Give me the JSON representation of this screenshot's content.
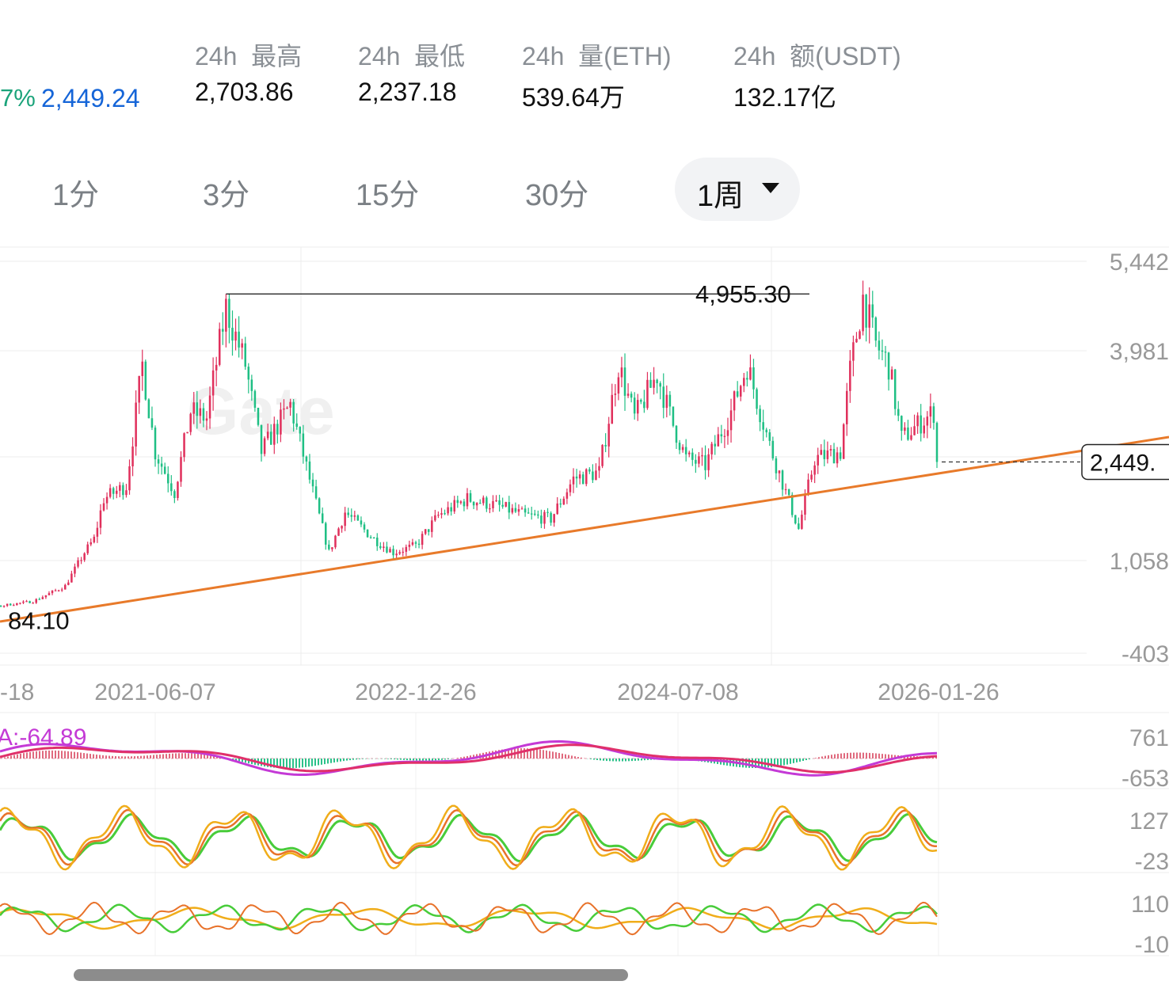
{
  "header": {
    "change_fragment": "7%",
    "last_price": "2,449.24",
    "stats": [
      {
        "label": "24h  最高",
        "value": "2,703.86"
      },
      {
        "label": "24h  最低",
        "value": "2,237.18"
      },
      {
        "label": "24h  量(ETH)",
        "value": "539.64万"
      },
      {
        "label": "24h  额(USDT)",
        "value": "132.17亿"
      }
    ]
  },
  "intervals": {
    "tabs": [
      "1分",
      "3分",
      "15分",
      "30分"
    ],
    "active": "1周"
  },
  "chart_data": [
    {
      "type": "candlestick",
      "y_axis_labels": [
        "5,442",
        "3,981",
        "1,058",
        "-403"
      ],
      "x_axis_labels": [
        "-18",
        "2021-06-07",
        "2022-12-26",
        "2024-07-08",
        "2026-01-26"
      ],
      "ylim": [
        -403,
        5442
      ],
      "high_marker": "4,955.30",
      "low_marker": "84.10",
      "last_price_tag": "2,449.",
      "watermark": "Gate",
      "trendline_color": "#e87a2a",
      "up_color": "#e0305c",
      "down_color": "#1fbf84",
      "series": [
        {
          "name": "price",
          "points": [
            [
              "2020-01-06",
              130
            ],
            [
              "2020-02-17",
              260
            ],
            [
              "2020-03-16",
              130
            ],
            [
              "2020-05-04",
              210
            ],
            [
              "2020-07-20",
              320
            ],
            [
              "2020-09-14",
              370
            ],
            [
              "2020-11-23",
              600
            ],
            [
              "2021-01-04",
              1100
            ],
            [
              "2021-01-25",
              1300
            ],
            [
              "2021-02-15",
              1900
            ],
            [
              "2021-04-05",
              2100
            ],
            [
              "2021-05-10",
              3900
            ],
            [
              "2021-06-07",
              2600
            ],
            [
              "2021-07-19",
              2000
            ],
            [
              "2021-08-23",
              3200
            ],
            [
              "2021-09-27",
              3100
            ],
            [
              "2021-11-08",
              4750
            ],
            [
              "2021-12-20",
              3900
            ],
            [
              "2022-01-24",
              2600
            ],
            [
              "2022-03-28",
              3300
            ],
            [
              "2022-05-16",
              2000
            ],
            [
              "2022-06-20",
              1100
            ],
            [
              "2022-07-25",
              1700
            ],
            [
              "2022-09-26",
              1300
            ],
            [
              "2022-11-07",
              1100
            ],
            [
              "2022-12-26",
              1200
            ],
            [
              "2023-02-13",
              1650
            ],
            [
              "2023-04-17",
              1900
            ],
            [
              "2023-06-19",
              1800
            ],
            [
              "2023-08-21",
              1650
            ],
            [
              "2023-10-16",
              1600
            ],
            [
              "2023-12-04",
              2200
            ],
            [
              "2024-01-29",
              2300
            ],
            [
              "2024-03-11",
              3900
            ],
            [
              "2024-04-15",
              3100
            ],
            [
              "2024-06-03",
              3750
            ],
            [
              "2024-07-08",
              3000
            ],
            [
              "2024-08-05",
              2500
            ],
            [
              "2024-09-16",
              2400
            ],
            [
              "2024-11-11",
              3200
            ],
            [
              "2024-12-16",
              3900
            ],
            [
              "2025-02-03",
              2700
            ],
            [
              "2025-03-10",
              2000
            ],
            [
              "2025-04-07",
              1450
            ],
            [
              "2025-05-12",
              2500
            ],
            [
              "2025-07-07",
              2600
            ],
            [
              "2025-07-28",
              3800
            ],
            [
              "2025-08-25",
              4900
            ],
            [
              "2025-09-22",
              4200
            ],
            [
              "2025-10-20",
              3900
            ],
            [
              "2025-11-17",
              2800
            ],
            [
              "2025-12-22",
              3000
            ],
            [
              "2026-01-26",
              3200
            ],
            [
              "2026-02-02",
              2449.24
            ]
          ]
        }
      ]
    },
    {
      "type": "line",
      "label": "A:-64.89",
      "y_axis_labels": [
        "761",
        "-653"
      ],
      "series": [
        {
          "name": "A",
          "color": "#c43ad6"
        }
      ]
    },
    {
      "type": "line",
      "y_axis_labels": [
        "127",
        "-23"
      ],
      "series": [
        {
          "color": "#f0ad1a"
        },
        {
          "color": "#e8722a"
        },
        {
          "color": "#48cc3a"
        }
      ]
    },
    {
      "type": "line",
      "y_axis_labels": [
        "110",
        "-10"
      ],
      "series": [
        {
          "color": "#f0ad1a"
        },
        {
          "color": "#e8722a"
        },
        {
          "color": "#48cc3a"
        }
      ]
    }
  ]
}
